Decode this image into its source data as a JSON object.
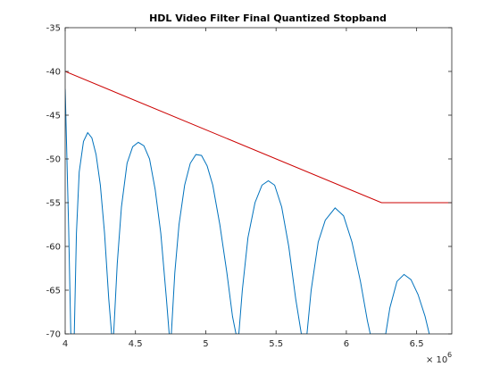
{
  "chart_data": {
    "type": "line",
    "title": "HDL Video Filter Final Quantized Stopband",
    "xlabel": "",
    "ylabel": "",
    "xlim": [
      4000000,
      6750000
    ],
    "ylim": [
      -70,
      -35
    ],
    "x_exponent_label": "× 10",
    "x_exponent": "6",
    "x_ticks": [
      {
        "value": 4000000,
        "label": "4"
      },
      {
        "value": 4500000,
        "label": "4.5"
      },
      {
        "value": 5000000,
        "label": "5"
      },
      {
        "value": 5500000,
        "label": "5.5"
      },
      {
        "value": 6000000,
        "label": "6"
      },
      {
        "value": 6500000,
        "label": "6.5"
      }
    ],
    "y_ticks": [
      {
        "value": -35,
        "label": "-35"
      },
      {
        "value": -40,
        "label": "-40"
      },
      {
        "value": -45,
        "label": "-45"
      },
      {
        "value": -50,
        "label": "-50"
      },
      {
        "value": -55,
        "label": "-55"
      },
      {
        "value": -60,
        "label": "-60"
      },
      {
        "value": -65,
        "label": "-65"
      },
      {
        "value": -70,
        "label": "-70"
      }
    ],
    "grid": false,
    "colors": {
      "response": "#0072bd",
      "mask": "#cc0000",
      "axes": "#262626"
    },
    "series": [
      {
        "points": [
          [
            4000000,
            -42.0
          ],
          [
            4010000,
            -48.5
          ],
          [
            4025000,
            -58.0
          ],
          [
            4040000,
            -70.0
          ],
          [
            4065000,
            -70.0
          ],
          [
            4080000,
            -58.5
          ],
          [
            4100000,
            -51.5
          ],
          [
            4130000,
            -48.0
          ],
          [
            4160000,
            -47.0
          ],
          [
            4190000,
            -47.6
          ],
          [
            4220000,
            -49.5
          ],
          [
            4250000,
            -53.0
          ],
          [
            4280000,
            -58.5
          ],
          [
            4310000,
            -66.0
          ],
          [
            4330000,
            -70.0
          ],
          [
            4345000,
            -70.0
          ],
          [
            4370000,
            -62.0
          ],
          [
            4400000,
            -55.5
          ],
          [
            4440000,
            -50.5
          ],
          [
            4480000,
            -48.6
          ],
          [
            4520000,
            -48.1
          ],
          [
            4560000,
            -48.5
          ],
          [
            4600000,
            -50.0
          ],
          [
            4640000,
            -53.5
          ],
          [
            4680000,
            -58.5
          ],
          [
            4720000,
            -66.0
          ],
          [
            4740000,
            -70.0
          ],
          [
            4755000,
            -70.0
          ],
          [
            4780000,
            -63.0
          ],
          [
            4810000,
            -57.5
          ],
          [
            4850000,
            -53.0
          ],
          [
            4890000,
            -50.5
          ],
          [
            4930000,
            -49.5
          ],
          [
            4970000,
            -49.6
          ],
          [
            5010000,
            -50.8
          ],
          [
            5050000,
            -53.0
          ],
          [
            5100000,
            -57.5
          ],
          [
            5150000,
            -63.0
          ],
          [
            5190000,
            -68.0
          ],
          [
            5215000,
            -70.0
          ],
          [
            5235000,
            -70.0
          ],
          [
            5260000,
            -65.0
          ],
          [
            5300000,
            -59.0
          ],
          [
            5350000,
            -55.0
          ],
          [
            5400000,
            -53.0
          ],
          [
            5445000,
            -52.5
          ],
          [
            5490000,
            -53.0
          ],
          [
            5540000,
            -55.5
          ],
          [
            5590000,
            -60.0
          ],
          [
            5640000,
            -66.0
          ],
          [
            5680000,
            -70.0
          ],
          [
            5720000,
            -70.0
          ],
          [
            5750000,
            -65.0
          ],
          [
            5800000,
            -59.5
          ],
          [
            5850000,
            -57.0
          ],
          [
            5920000,
            -55.6
          ],
          [
            5980000,
            -56.5
          ],
          [
            6040000,
            -59.5
          ],
          [
            6100000,
            -64.0
          ],
          [
            6150000,
            -68.5
          ],
          [
            6170000,
            -70.0
          ],
          [
            6280000,
            -70.0
          ],
          [
            6310000,
            -67.0
          ],
          [
            6360000,
            -64.0
          ],
          [
            6410000,
            -63.2
          ],
          [
            6460000,
            -63.8
          ],
          [
            6510000,
            -65.5
          ],
          [
            6560000,
            -68.0
          ],
          [
            6590000,
            -70.0
          ]
        ]
      },
      {
        "points": [
          [
            4000000,
            -40.0
          ],
          [
            6250000,
            -55.0
          ],
          [
            6750000,
            -55.0
          ]
        ]
      }
    ]
  }
}
